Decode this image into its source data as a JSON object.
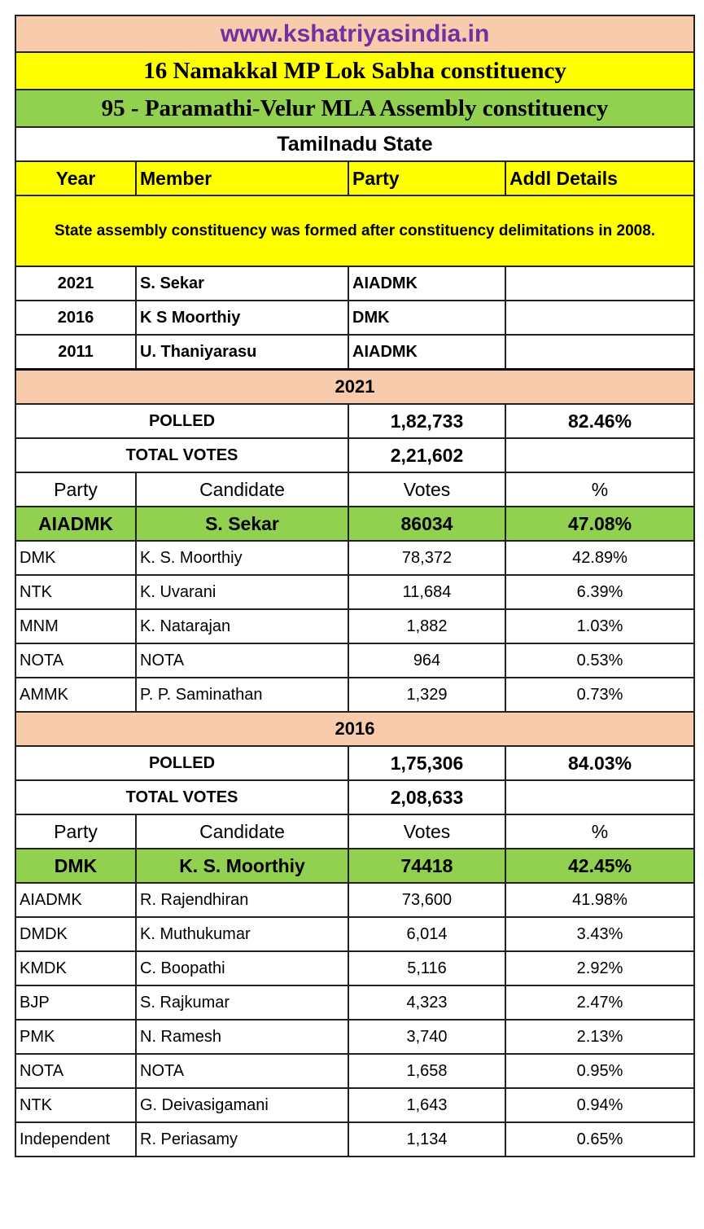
{
  "site": "www.kshatriyasindia.in",
  "lok_sabha": "16 Namakkal MP Lok Sabha constituency",
  "assembly": "95 - Paramathi-Velur MLA Assembly constituency",
  "state": "Tamilnadu State",
  "members_header": [
    "Year",
    "Member",
    "Party",
    "Addl Details"
  ],
  "note": "State assembly constituency was formed after constituency delimitations in 2008.",
  "members": [
    {
      "year": "2021",
      "member": "S. Sekar",
      "party": "AIADMK",
      "details": ""
    },
    {
      "year": "2016",
      "member": "K S Moorthiy",
      "party": "DMK",
      "details": ""
    },
    {
      "year": "2011",
      "member": "U. Thaniyarasu",
      "party": "AIADMK",
      "details": ""
    }
  ],
  "elections": [
    {
      "year": "2021",
      "polled_label": "POLLED",
      "polled": "1,82,733",
      "polled_pct": "82.46%",
      "total_label": "TOTAL VOTES",
      "total": "2,21,602",
      "header": [
        "Party",
        "Candidate",
        "Votes",
        "%"
      ],
      "winner": {
        "party": "AIADMK",
        "candidate": "S. Sekar",
        "votes": "86034",
        "pct": "47.08%"
      },
      "others": [
        {
          "party": "DMK",
          "candidate": "K. S. Moorthiy",
          "votes": "78,372",
          "pct": "42.89%"
        },
        {
          "party": "NTK",
          "candidate": "K. Uvarani",
          "votes": "11,684",
          "pct": "6.39%"
        },
        {
          "party": "MNM",
          "candidate": "K. Natarajan",
          "votes": "1,882",
          "pct": "1.03%"
        },
        {
          "party": "NOTA",
          "candidate": "NOTA",
          "votes": "964",
          "pct": "0.53%"
        },
        {
          "party": "AMMK",
          "candidate": "P. P. Saminathan",
          "votes": "1,329",
          "pct": "0.73%"
        }
      ]
    },
    {
      "year": "2016",
      "polled_label": "POLLED",
      "polled": "1,75,306",
      "polled_pct": "84.03%",
      "total_label": "TOTAL VOTES",
      "total": "2,08,633",
      "header": [
        "Party",
        "Candidate",
        "Votes",
        "%"
      ],
      "winner": {
        "party": "DMK",
        "candidate": "K. S. Moorthiy",
        "votes": "74418",
        "pct": "42.45%"
      },
      "others": [
        {
          "party": "AIADMK",
          "candidate": "R. Rajendhiran",
          "votes": "73,600",
          "pct": "41.98%"
        },
        {
          "party": "DMDK",
          "candidate": "K. Muthukumar",
          "votes": "6,014",
          "pct": "3.43%"
        },
        {
          "party": "KMDK",
          "candidate": "C. Boopathi",
          "votes": "5,116",
          "pct": "2.92%"
        },
        {
          "party": "BJP",
          "candidate": "S. Rajkumar",
          "votes": "4,323",
          "pct": "2.47%"
        },
        {
          "party": "PMK",
          "candidate": "N. Ramesh",
          "votes": "3,740",
          "pct": "2.13%"
        },
        {
          "party": "NOTA",
          "candidate": "NOTA",
          "votes": "1,658",
          "pct": "0.95%"
        },
        {
          "party": "NTK",
          "candidate": "G. Deivasigamani",
          "votes": "1,643",
          "pct": "0.94%"
        },
        {
          "party": "Independent",
          "candidate": "R. Periasamy",
          "votes": "1,134",
          "pct": "0.65%"
        }
      ]
    }
  ]
}
